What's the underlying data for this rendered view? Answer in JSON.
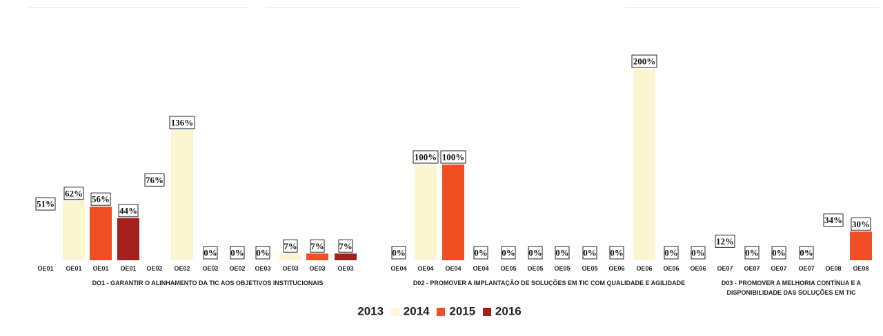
{
  "colors": {
    "2013": "#ffffff",
    "2014": "#fbf5d2",
    "2015": "#f04e23",
    "2016": "#a3201d"
  },
  "chart_data": {
    "type": "bar",
    "ylim": [
      0,
      200
    ],
    "grid": false,
    "legend_position": "bottom",
    "legend": [
      "2013",
      "2014",
      "2015",
      "2016"
    ],
    "bars": [
      {
        "category": "OE01",
        "year": "2013",
        "value": 51,
        "label": "51%"
      },
      {
        "category": "OE01",
        "year": "2014",
        "value": 62,
        "label": "62%"
      },
      {
        "category": "OE01",
        "year": "2015",
        "value": 56,
        "label": "56%"
      },
      {
        "category": "OE01",
        "year": "2016",
        "value": 44,
        "label": "44%"
      },
      {
        "category": "OE02",
        "year": "2013",
        "value": 76,
        "label": "76%"
      },
      {
        "category": "OE02",
        "year": "2014",
        "value": 136,
        "label": "136%"
      },
      {
        "category": "OE02",
        "year": "2015",
        "value": 0,
        "label": "0%"
      },
      {
        "category": "OE02",
        "year": "2016",
        "value": 0,
        "label": "0%"
      },
      {
        "category": "OE03",
        "year": "2013",
        "value": 0,
        "label": "0%"
      },
      {
        "category": "OE03",
        "year": "2014",
        "value": 7,
        "label": "7%"
      },
      {
        "category": "OE03",
        "year": "2015",
        "value": 7,
        "label": "7%"
      },
      {
        "category": "OE03",
        "year": "2016",
        "value": 7,
        "label": "7%"
      },
      {
        "category": "OE04",
        "year": "2013",
        "value": 0,
        "label": "0%"
      },
      {
        "category": "OE04",
        "year": "2014",
        "value": 100,
        "label": "100%"
      },
      {
        "category": "OE04",
        "year": "2015",
        "value": 100,
        "label": "100%"
      },
      {
        "category": "OE04",
        "year": "2016",
        "value": 0,
        "label": "0%"
      },
      {
        "category": "OE05",
        "year": "2013",
        "value": 0,
        "label": "0%"
      },
      {
        "category": "OE05",
        "year": "2014",
        "value": 0,
        "label": "0%"
      },
      {
        "category": "OE05",
        "year": "2015",
        "value": 0,
        "label": "0%"
      },
      {
        "category": "OE05",
        "year": "2016",
        "value": 0,
        "label": "0%"
      },
      {
        "category": "OE06",
        "year": "2013",
        "value": 0,
        "label": "0%"
      },
      {
        "category": "OE06",
        "year": "2014",
        "value": 200,
        "label": "200%"
      },
      {
        "category": "OE06",
        "year": "2015",
        "value": 0,
        "label": "0%"
      },
      {
        "category": "OE06",
        "year": "2016",
        "value": 0,
        "label": "0%"
      },
      {
        "category": "OE07",
        "year": "2013",
        "value": 12,
        "label": "12%"
      },
      {
        "category": "OE07",
        "year": "2014",
        "value": 0,
        "label": "0%"
      },
      {
        "category": "OE07",
        "year": "2015",
        "value": 0,
        "label": "0%"
      },
      {
        "category": "OE07",
        "year": "2016",
        "value": 0,
        "label": "0%"
      },
      {
        "category": "OE08",
        "year": "2013",
        "value": 34,
        "label": "34%"
      },
      {
        "category": "OE08",
        "year": "2015",
        "value": 30,
        "label": "30%"
      }
    ],
    "groups": [
      {
        "label_lines": [
          "DO1 - GARANTIR O ALINHAMENTO DA TIC AOS OBJETIVOS INSTITUCIONAIS"
        ]
      },
      {
        "label_lines": [
          "D02 - PROMOVER A IMPLANTAÇÃO DE SOLUÇÕES EM TIC COM QUALIDADE E AGILIDADE"
        ]
      },
      {
        "label_lines": [
          "D03 - PROMOVER A MELHORIA CONTÍNUA E A",
          "DISPONIBILIDADE DAS SOLUÇÕES EM TIC"
        ]
      }
    ]
  }
}
